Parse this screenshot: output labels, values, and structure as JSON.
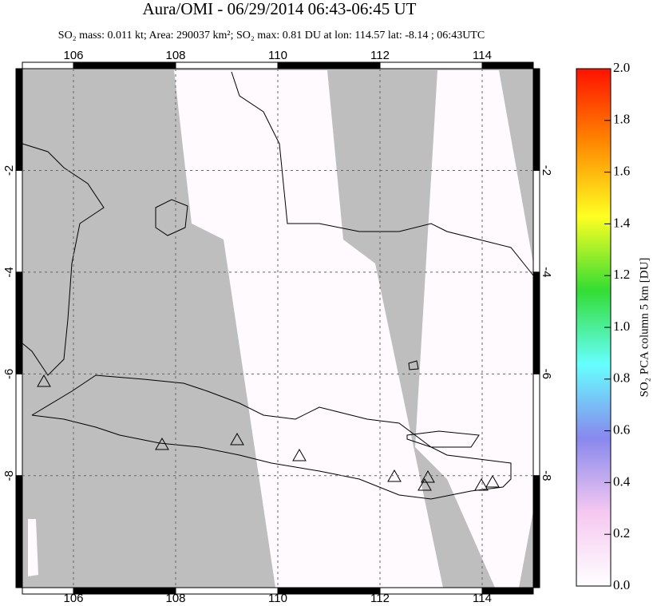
{
  "map": {
    "title": "Aura/OMI - 06/29/2014 06:43-06:45 UT",
    "subtitle": "SO₂ mass: 0.011 kt; Area: 290037 km²; SO₂ max: 0.81 DU at lon: 114.57 lat: -8.14 ; 06:43UTC",
    "lonlim": [
      105,
      115
    ],
    "latlim": [
      -10.2,
      0
    ],
    "lonticks": [
      106,
      108,
      110,
      112,
      114
    ],
    "latticks": [
      -2,
      -4,
      -6,
      -8
    ],
    "colorbar": {
      "label": "SO₂ PCA column 5 km [DU]",
      "lim": [
        0,
        2
      ],
      "ticks": [
        {
          "value": 0,
          "label": "0.0"
        },
        0.2,
        0.4,
        0.6,
        0.8,
        {
          "value": 1,
          "label": "1.0"
        },
        1.2,
        1.4,
        1.6,
        1.8,
        {
          "value": 2,
          "label": "2.0"
        }
      ],
      "colors": [
        "#ffffff",
        "#f5c8f0",
        "#8888ee",
        "#66ffff",
        "#33dd33",
        "#ffff22",
        "#ff8800",
        "#ff1100"
      ]
    }
  }
}
